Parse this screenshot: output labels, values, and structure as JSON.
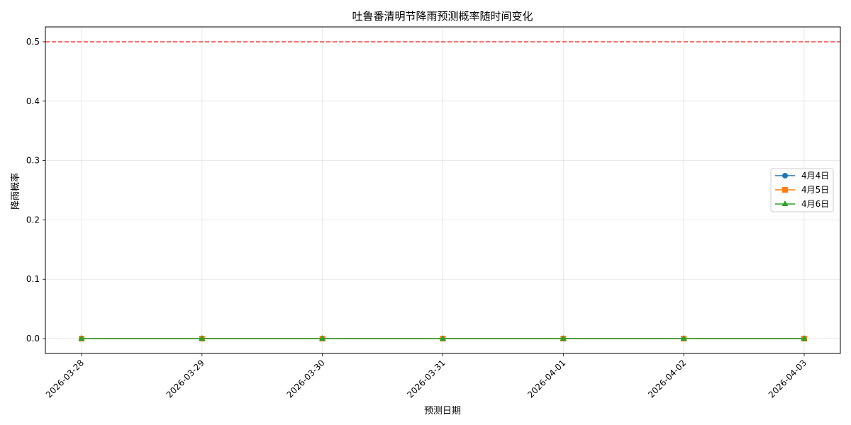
{
  "chart_data": {
    "type": "line",
    "title": "吐鲁番清明节降雨预测概率随时间变化",
    "xlabel": "预测日期",
    "ylabel": "降雨概率",
    "x": [
      "2026-03-28",
      "2026-03-29",
      "2026-03-30",
      "2026-03-31",
      "2026-04-01",
      "2026-04-02",
      "2026-04-03"
    ],
    "ylim": [
      -0.025,
      0.525
    ],
    "yticks": [
      0.0,
      0.1,
      0.2,
      0.3,
      0.4,
      0.5
    ],
    "ytick_labels": [
      "0.0",
      "0.1",
      "0.2",
      "0.3",
      "0.4",
      "0.5"
    ],
    "grid": true,
    "legend_position": "center-right",
    "reference_line": {
      "y": 0.5,
      "color": "#ff0000",
      "style": "dashed"
    },
    "series": [
      {
        "name": "4月4日",
        "color": "#1f77b4",
        "marker": "circle",
        "values": [
          0,
          0,
          0,
          0,
          0,
          0,
          0
        ]
      },
      {
        "name": "4月5日",
        "color": "#ff7f0e",
        "marker": "square",
        "values": [
          0,
          0,
          0,
          0,
          0,
          0,
          0
        ]
      },
      {
        "name": "4月6日",
        "color": "#2ca02c",
        "marker": "triangle",
        "values": [
          0,
          0,
          0,
          0,
          0,
          0,
          0
        ]
      }
    ]
  }
}
